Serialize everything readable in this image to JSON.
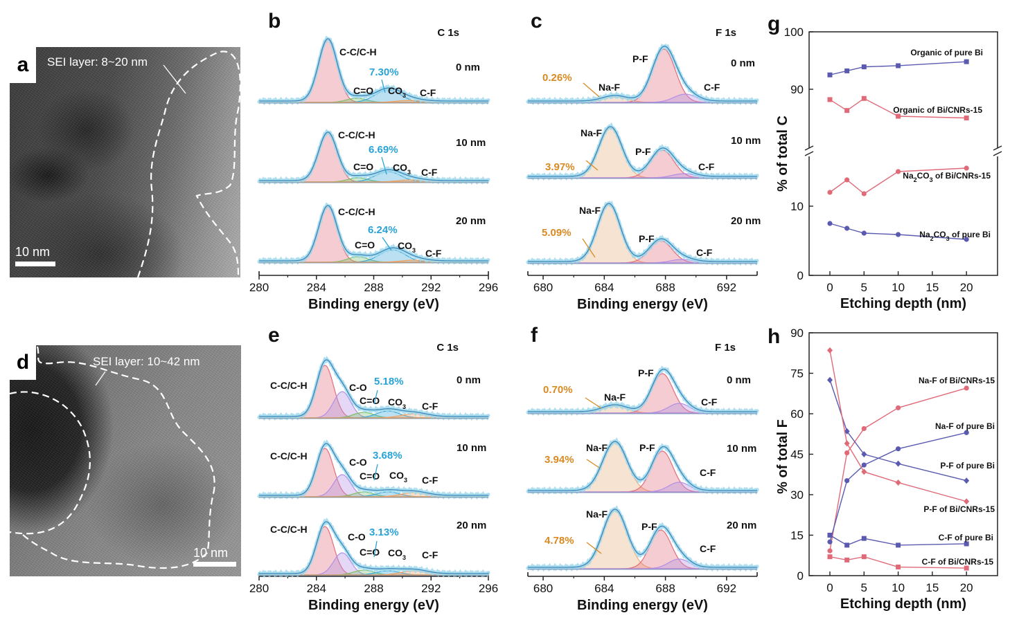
{
  "panels": {
    "a": {
      "letter": "a",
      "sei_label": "SEI layer: 8~20 nm",
      "scalebar": "10 nm"
    },
    "d": {
      "letter": "d",
      "sei_label": "SEI layer: 10~42 nm",
      "scalebar": "10 nm"
    }
  },
  "xps": [
    {
      "letter": "b",
      "element": "C 1s",
      "type": "C",
      "xrange": [
        280,
        296
      ],
      "ticks": [
        280,
        284,
        288,
        292,
        296
      ],
      "xlabel": "Binding energy (eV)",
      "y_spectra": [
        148,
        263,
        379
      ],
      "depths": [
        "0 nm",
        "10 nm",
        "20 nm"
      ],
      "pcts": [
        "7.30%",
        "6.69%",
        "6.24%"
      ],
      "peaks": [
        [
          {
            "name": "C-C/C-H",
            "c": 284.8,
            "h": 90,
            "w": 0.65,
            "col": "#e36d7a"
          },
          {
            "name": "C=O",
            "c": 286.8,
            "h": 6,
            "w": 0.7,
            "col": "#7fbf6a"
          },
          {
            "name": "CO3",
            "c": 289.0,
            "h": 18,
            "w": 0.9,
            "col": "#3aa7d9"
          },
          {
            "name": "C-F",
            "c": 290.5,
            "h": 3,
            "w": 0.9,
            "col": "#f0a060"
          }
        ],
        [
          {
            "name": "C-C/C-H",
            "c": 284.8,
            "h": 70,
            "w": 0.65,
            "col": "#e36d7a"
          },
          {
            "name": "C=O",
            "c": 286.9,
            "h": 6,
            "w": 0.7,
            "col": "#7fbf6a"
          },
          {
            "name": "CO3",
            "c": 289.0,
            "h": 15,
            "w": 0.9,
            "col": "#3aa7d9"
          },
          {
            "name": "C-F",
            "c": 290.6,
            "h": 3,
            "w": 0.9,
            "col": "#f0a060"
          }
        ],
        [
          {
            "name": "C-C/C-H",
            "c": 284.8,
            "h": 80,
            "w": 0.65,
            "col": "#e36d7a"
          },
          {
            "name": "C=O",
            "c": 286.9,
            "h": 8,
            "w": 0.7,
            "col": "#7fbf6a"
          },
          {
            "name": "CO3",
            "c": 289.3,
            "h": 18,
            "w": 0.9,
            "col": "#3aa7d9"
          },
          {
            "name": "C-F",
            "c": 290.8,
            "h": 3,
            "w": 0.9,
            "col": "#f0a060"
          }
        ]
      ]
    },
    {
      "letter": "c",
      "element": "F 1s",
      "type": "F",
      "xrange": [
        679,
        694
      ],
      "ticks": [
        680,
        684,
        688,
        692
      ],
      "xlabel": "Binding energy (eV)",
      "y_spectra": [
        148,
        257,
        380
      ],
      "depths": [
        "0 nm",
        "10 nm",
        "20 nm"
      ],
      "pcts": [
        "0.26%",
        "3.97%",
        "5.09%"
      ],
      "peaks": [
        [
          {
            "name": "Na-F",
            "c": 684.7,
            "h": 8,
            "w": 0.8,
            "col": "#e8b07a"
          },
          {
            "name": "P-F",
            "c": 687.9,
            "h": 77,
            "w": 0.75,
            "col": "#e36d7a"
          },
          {
            "name": "C-F",
            "c": 689.3,
            "h": 12,
            "w": 0.75,
            "col": "#b28ee6"
          }
        ],
        [
          {
            "name": "Na-F",
            "c": 684.4,
            "h": 72,
            "w": 0.75,
            "col": "#e8b07a"
          },
          {
            "name": "P-F",
            "c": 687.8,
            "h": 40,
            "w": 0.75,
            "col": "#e36d7a"
          },
          {
            "name": "C-F",
            "c": 689.2,
            "h": 6,
            "w": 0.75,
            "col": "#b28ee6"
          }
        ],
        [
          {
            "name": "Na-F",
            "c": 684.3,
            "h": 84,
            "w": 0.75,
            "col": "#e8b07a"
          },
          {
            "name": "P-F",
            "c": 687.7,
            "h": 32,
            "w": 0.75,
            "col": "#e36d7a"
          },
          {
            "name": "C-F",
            "c": 689.1,
            "h": 5,
            "w": 0.75,
            "col": "#b28ee6"
          }
        ]
      ]
    },
    {
      "letter": "e",
      "element": "C 1s",
      "type": "C",
      "xrange": [
        280,
        296
      ],
      "ticks": [
        280,
        284,
        288,
        292,
        296
      ],
      "xlabel": "Binding energy (eV)",
      "y_spectra": [
        604,
        718,
        831
      ],
      "depths": [
        "0 nm",
        "10 nm",
        "20 nm"
      ],
      "pcts": [
        "5.18%",
        "3.68%",
        "3.13%"
      ],
      "peaks": [
        [
          {
            "name": "C-C/C-H",
            "c": 284.6,
            "h": 76,
            "w": 0.6,
            "col": "#e36d7a"
          },
          {
            "name": "C-O",
            "c": 285.8,
            "h": 38,
            "w": 0.6,
            "col": "#b28ee6"
          },
          {
            "name": "C=O",
            "c": 287.3,
            "h": 8,
            "w": 0.7,
            "col": "#7fbf6a"
          },
          {
            "name": "CO3",
            "c": 289.0,
            "h": 10,
            "w": 0.8,
            "col": "#3aa7d9"
          },
          {
            "name": "C-F",
            "c": 290.8,
            "h": 6,
            "w": 0.9,
            "col": "#f0a060"
          }
        ],
        [
          {
            "name": "C-C/C-H",
            "c": 284.6,
            "h": 70,
            "w": 0.6,
            "col": "#e36d7a"
          },
          {
            "name": "C-O",
            "c": 285.8,
            "h": 32,
            "w": 0.6,
            "col": "#b28ee6"
          },
          {
            "name": "C=O",
            "c": 287.3,
            "h": 7,
            "w": 0.7,
            "col": "#7fbf6a"
          },
          {
            "name": "CO3",
            "c": 289.0,
            "h": 7,
            "w": 0.8,
            "col": "#3aa7d9"
          },
          {
            "name": "C-F",
            "c": 290.8,
            "h": 6,
            "w": 0.9,
            "col": "#f0a060"
          }
        ],
        [
          {
            "name": "C-C/C-H",
            "c": 284.6,
            "h": 70,
            "w": 0.6,
            "col": "#e36d7a"
          },
          {
            "name": "C-O",
            "c": 285.8,
            "h": 32,
            "w": 0.6,
            "col": "#b28ee6"
          },
          {
            "name": "C=O",
            "c": 287.3,
            "h": 7,
            "w": 0.7,
            "col": "#7fbf6a"
          },
          {
            "name": "CO3",
            "c": 289.0,
            "h": 6,
            "w": 0.8,
            "col": "#3aa7d9"
          },
          {
            "name": "C-F",
            "c": 290.8,
            "h": 6,
            "w": 0.9,
            "col": "#f0a060"
          }
        ]
      ]
    },
    {
      "letter": "f",
      "element": "F 1s",
      "type": "F",
      "xrange": [
        679,
        694
      ],
      "ticks": [
        680,
        684,
        688,
        692
      ],
      "xlabel": "Binding energy (eV)",
      "y_spectra": [
        597,
        711,
        822
      ],
      "depths": [
        "0 nm",
        "10 nm",
        "20 nm"
      ],
      "pcts": [
        "0.70%",
        "3.94%",
        "4.78%"
      ],
      "peaks": [
        [
          {
            "name": "Na-F",
            "c": 684.7,
            "h": 10,
            "w": 0.8,
            "col": "#e8b07a"
          },
          {
            "name": "P-F",
            "c": 687.8,
            "h": 57,
            "w": 0.7,
            "col": "#e36d7a"
          },
          {
            "name": "C-F",
            "c": 688.9,
            "h": 14,
            "w": 0.7,
            "col": "#b28ee6"
          }
        ],
        [
          {
            "name": "Na-F",
            "c": 684.7,
            "h": 71,
            "w": 0.8,
            "col": "#e8b07a"
          },
          {
            "name": "P-F",
            "c": 687.8,
            "h": 59,
            "w": 0.7,
            "col": "#e36d7a"
          },
          {
            "name": "C-F",
            "c": 688.9,
            "h": 14,
            "w": 0.7,
            "col": "#b28ee6"
          }
        ],
        [
          {
            "name": "Na-F",
            "c": 684.7,
            "h": 84,
            "w": 0.8,
            "col": "#e8b07a"
          },
          {
            "name": "P-F",
            "c": 687.7,
            "h": 56,
            "w": 0.7,
            "col": "#e36d7a"
          },
          {
            "name": "C-F",
            "c": 688.9,
            "h": 14,
            "w": 0.7,
            "col": "#b28ee6"
          }
        ]
      ]
    }
  ],
  "chart_data": [
    {
      "panel": "g",
      "type": "line",
      "title": "",
      "xlabel": "Etching depth (nm)",
      "ylabel": "% of total C",
      "x": [
        0,
        2.5,
        5,
        10,
        20
      ],
      "xticks": [
        0,
        5,
        10,
        15,
        20
      ],
      "ylim_upper": [
        80,
        100
      ],
      "yticks_upper": [
        90,
        100
      ],
      "ylim_lower": [
        0,
        17
      ],
      "yticks_lower": [
        0,
        10
      ],
      "series": [
        {
          "name": "Organic of pure Bi",
          "color": "#5a5ab0",
          "marker": "square",
          "values": [
            92.5,
            93.2,
            93.9,
            94.1,
            94.8
          ]
        },
        {
          "name": "Organic of Bi/CNRs-15",
          "color": "#e06a78",
          "marker": "square",
          "values": [
            88.2,
            86.3,
            88.4,
            85.3,
            85.0
          ]
        },
        {
          "name": "Na2CO3 of Bi/CNRs-15",
          "name_pre": "Na",
          "name_sub1": "2",
          "name_mid": "CO",
          "name_sub2": "3",
          "name_post": " of Bi/CNRs-15",
          "color": "#e06a78",
          "marker": "circle",
          "values": [
            12.0,
            13.8,
            11.8,
            15.0,
            15.5
          ]
        },
        {
          "name": "Na2CO3 of pure Bi",
          "name_pre": "Na",
          "name_sub1": "2",
          "name_mid": "CO",
          "name_sub2": "3",
          "name_post": " of pure Bi",
          "color": "#5a5ab0",
          "marker": "circle",
          "values": [
            7.5,
            6.8,
            6.1,
            5.9,
            5.2
          ]
        }
      ]
    },
    {
      "panel": "h",
      "type": "line",
      "title": "",
      "xlabel": "Etching depth (nm)",
      "ylabel": "% of total F",
      "x": [
        0,
        2.5,
        5,
        10,
        20
      ],
      "xticks": [
        0,
        5,
        10,
        15,
        20
      ],
      "ylim": [
        0,
        90
      ],
      "yticks": [
        0,
        15,
        30,
        45,
        60,
        75,
        90
      ],
      "series": [
        {
          "name": "Na-F of Bi/CNRs-15",
          "color": "#e06a78",
          "marker": "circle",
          "values": [
            9.2,
            45.5,
            54.5,
            62.2,
            69.5
          ]
        },
        {
          "name": "Na-F of pure Bi",
          "color": "#5a5ab0",
          "marker": "circle",
          "values": [
            12.5,
            35.2,
            41.0,
            47.0,
            53.0
          ]
        },
        {
          "name": "P-F of pure Bi",
          "color": "#5a5ab0",
          "marker": "diamond",
          "values": [
            72.5,
            53.5,
            45.0,
            41.5,
            35.2
          ]
        },
        {
          "name": "P-F of Bi/CNRs-15",
          "color": "#e06a78",
          "marker": "diamond",
          "values": [
            83.5,
            49.0,
            38.5,
            34.5,
            27.5
          ]
        },
        {
          "name": "C-F of pure Bi",
          "color": "#5a5ab0",
          "marker": "square",
          "values": [
            15.0,
            11.3,
            13.8,
            11.3,
            11.8
          ]
        },
        {
          "name": "C-F of Bi/CNRs-15",
          "color": "#e06a78",
          "marker": "square",
          "values": [
            7.0,
            5.8,
            7.0,
            3.2,
            2.8
          ]
        }
      ]
    }
  ]
}
